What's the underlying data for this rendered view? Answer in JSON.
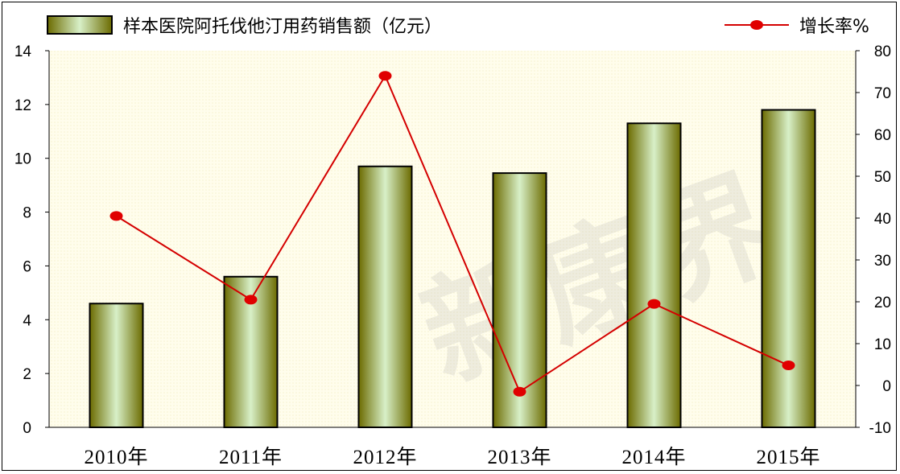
{
  "chart_data": {
    "type": "bar+line",
    "categories": [
      "2010年",
      "2011年",
      "2012年",
      "2013年",
      "2014年",
      "2015年"
    ],
    "series": [
      {
        "name": "样本医院阿托伐他汀用药销售额（亿元）",
        "type": "bar",
        "axis": "left",
        "values": [
          4.6,
          5.6,
          9.7,
          9.45,
          11.3,
          11.8
        ]
      },
      {
        "name": "增长率%",
        "type": "line",
        "axis": "right",
        "values": [
          40.5,
          20.5,
          74,
          -1.5,
          19.5,
          4.8
        ]
      }
    ],
    "y_left": {
      "range": [
        0,
        14
      ],
      "ticks": [
        "0",
        "2",
        "4",
        "6",
        "8",
        "10",
        "12",
        "14"
      ]
    },
    "y_right": {
      "range": [
        -10,
        80
      ],
      "ticks": [
        "-10",
        "0",
        "10",
        "20",
        "30",
        "40",
        "50",
        "60",
        "70",
        "80"
      ]
    },
    "grid": false,
    "legend": "top",
    "colors": {
      "bar_edge": "#6b6b00",
      "bar_center": "#d8f0c8",
      "line": "#d40000",
      "plot_bg": "#fffde8"
    }
  },
  "watermark": "新康界"
}
